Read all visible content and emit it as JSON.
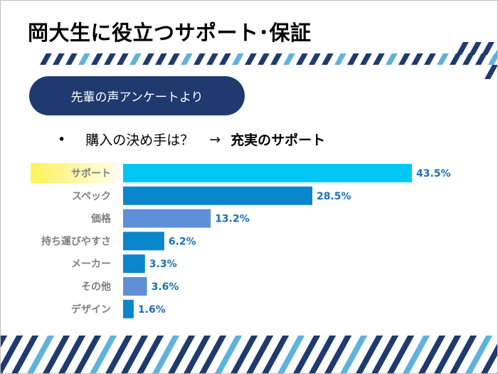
{
  "slide": {
    "title": "岡大生に役立つサポート･保証",
    "pill_label": "先輩の声アンケートより",
    "bullet": "•",
    "question": "購入の決め手は？",
    "arrow": "→",
    "answer": "充実のサポート"
  },
  "colors": {
    "pill": "#1f3a6e",
    "stripe": "#1f3a6e",
    "stripe_light": "#5fb2dc",
    "highlight": "#fff35a",
    "value_label": "#1b6fb8",
    "category_label": "#7f7f7f"
  },
  "chart_data": {
    "type": "bar",
    "orientation": "horizontal",
    "categories": [
      "サポート",
      "スペック",
      "価格",
      "持ち運びやすさ",
      "メーカー",
      "その他",
      "デザイン"
    ],
    "values": [
      43.5,
      28.5,
      13.2,
      6.2,
      3.3,
      3.6,
      1.6
    ],
    "value_labels": [
      "43.5%",
      "28.5%",
      "13.2%",
      "6.2%",
      "3.3%",
      "3.6%",
      "1.6%"
    ],
    "bar_colors": [
      "#00c8f5",
      "#0a86cc",
      "#5f8fd8",
      "#0a86cc",
      "#0a86cc",
      "#5f8fd8",
      "#0a86cc"
    ],
    "highlighted_category": "サポート",
    "xlim": [
      0,
      43.5
    ],
    "title": "",
    "xlabel": "",
    "ylabel": "",
    "grid": false,
    "legend": "none"
  }
}
